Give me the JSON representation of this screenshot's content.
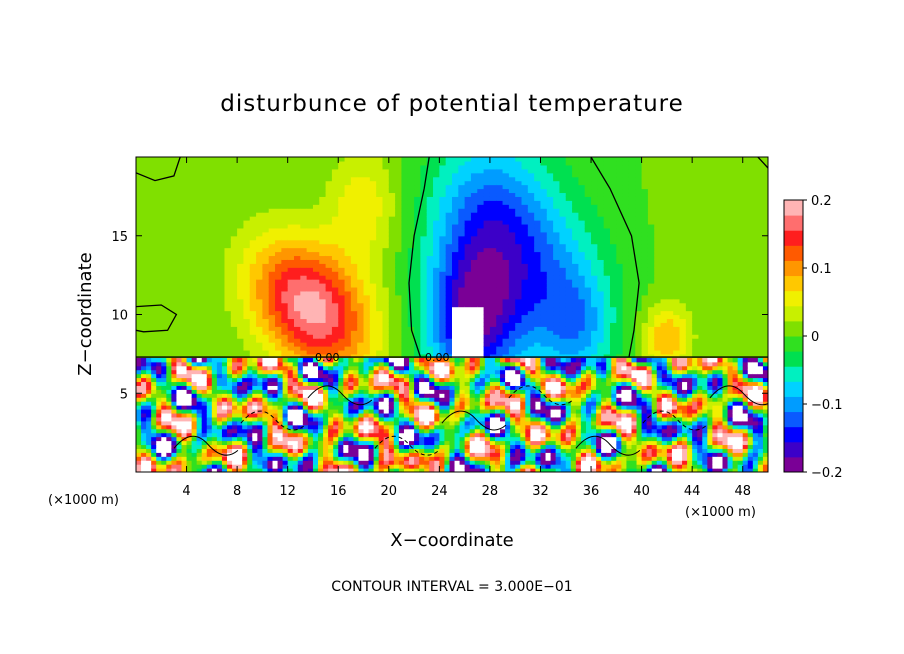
{
  "chart_data": {
    "type": "heatmap",
    "title": "disturbunce of potential temperature",
    "xlabel": "X−coordinate",
    "ylabel": "Z−coordinate",
    "x_unit_left": "(×1000 m)",
    "x_unit_right": "(×1000 m)",
    "xlim": [
      0,
      50
    ],
    "ylim": [
      0,
      20
    ],
    "x_ticks": [
      "4",
      "8",
      "12",
      "16",
      "20",
      "24",
      "28",
      "32",
      "36",
      "40",
      "44",
      "48"
    ],
    "y_ticks": [
      "5",
      "10",
      "15"
    ],
    "colorbar": {
      "range": [
        -0.2,
        0.2
      ],
      "labels": [
        "0.2",
        "0.1",
        "0",
        "−0.1",
        "−0.2"
      ],
      "colors": [
        "#7a0096",
        "#3c00c8",
        "#0000ff",
        "#0a5aff",
        "#009cff",
        "#00d2ff",
        "#00f0c0",
        "#00e050",
        "#30e020",
        "#80e000",
        "#c8f000",
        "#f0f000",
        "#ffc800",
        "#ff9600",
        "#ff5a00",
        "#ff1e1e",
        "#ff6e6e",
        "#ffb4b4"
      ]
    },
    "contour_labels": [
      "0.00",
      "0.00"
    ],
    "contour_interval_text": "CONTOUR INTERVAL = 3.000E−01",
    "upper_layer_features": [
      {
        "name": "warm anomaly",
        "x": 14,
        "z": 11,
        "value": 0.17
      },
      {
        "name": "cold anomaly",
        "x": 26,
        "z": 10.5,
        "value": -0.2
      },
      {
        "name": "cold anomaly upper",
        "x": 28,
        "z": 16,
        "value": -0.12
      },
      {
        "name": "warm anomaly small",
        "x": 42,
        "z": 8,
        "value": 0.15
      }
    ],
    "boundary_layer_top_z": 7.2,
    "grid": false,
    "legend": "right"
  }
}
